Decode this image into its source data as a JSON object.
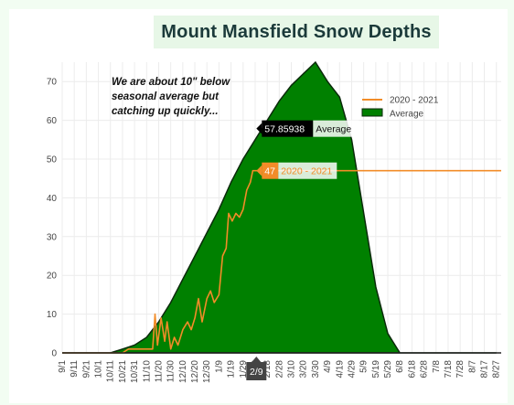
{
  "title": "Mount Mansfield Snow Depths",
  "annotation": "We are about 10\" below seasonal average but catching up quickly...",
  "colors": {
    "average_fill": "#008000",
    "average_line": "#0a2a0a",
    "season_line": "#f28c28",
    "title_bg": "#e7f7e7",
    "frame_bg": "#f2fdf2",
    "grid": "#ececec"
  },
  "tooltips": {
    "average": {
      "value": "57.85938",
      "label": "Average"
    },
    "season": {
      "value": "47",
      "label": "2020 - 2021"
    },
    "x_hover": "2/9"
  },
  "chart_data": {
    "type": "area",
    "title": "Mount Mansfield Snow Depths",
    "xlabel": "",
    "ylabel": "",
    "ylim": [
      0,
      75
    ],
    "yticks": [
      0,
      10,
      20,
      30,
      40,
      50,
      60,
      70
    ],
    "grid": true,
    "legend_position": "top-right",
    "x_ticks": [
      "9/1",
      "9/11",
      "9/21",
      "10/1",
      "10/11",
      "10/21",
      "10/31",
      "11/10",
      "11/20",
      "11/30",
      "12/10",
      "12/20",
      "12/30",
      "1/9",
      "1/19",
      "1/29",
      "2/8",
      "2/18",
      "2/28",
      "3/10",
      "3/20",
      "3/30",
      "4/9",
      "4/19",
      "4/29",
      "5/9",
      "5/19",
      "5/29",
      "6/8",
      "6/18",
      "6/28",
      "7/8",
      "7/18",
      "7/28",
      "8/7",
      "8/17",
      "8/27"
    ],
    "series": [
      {
        "name": "Average",
        "type": "area",
        "points": [
          [
            "9/1",
            0
          ],
          [
            "10/11",
            0
          ],
          [
            "10/21",
            1
          ],
          [
            "10/31",
            2
          ],
          [
            "11/10",
            4
          ],
          [
            "11/20",
            8
          ],
          [
            "11/30",
            13
          ],
          [
            "12/10",
            19
          ],
          [
            "12/20",
            25
          ],
          [
            "12/30",
            31
          ],
          [
            "1/9",
            37
          ],
          [
            "1/19",
            44
          ],
          [
            "1/29",
            50
          ],
          [
            "2/8",
            55
          ],
          [
            "2/18",
            60
          ],
          [
            "2/28",
            65
          ],
          [
            "3/10",
            69
          ],
          [
            "3/20",
            72
          ],
          [
            "3/30",
            75
          ],
          [
            "4/9",
            70
          ],
          [
            "4/19",
            66
          ],
          [
            "4/29",
            55
          ],
          [
            "5/9",
            36
          ],
          [
            "5/19",
            17
          ],
          [
            "5/29",
            5
          ],
          [
            "6/8",
            0
          ],
          [
            "8/27",
            0
          ]
        ]
      },
      {
        "name": "2020 - 2021",
        "type": "line",
        "points": [
          [
            "9/1",
            0
          ],
          [
            "10/21",
            0
          ],
          [
            "10/26",
            1
          ],
          [
            "11/15",
            1
          ],
          [
            "11/17",
            10
          ],
          [
            "11/19",
            2
          ],
          [
            "11/22",
            9
          ],
          [
            "11/25",
            3
          ],
          [
            "11/27",
            8
          ],
          [
            "11/30",
            1
          ],
          [
            "12/3",
            4
          ],
          [
            "12/6",
            2
          ],
          [
            "12/10",
            6
          ],
          [
            "12/14",
            8
          ],
          [
            "12/17",
            6
          ],
          [
            "12/20",
            9
          ],
          [
            "12/23",
            14
          ],
          [
            "12/26",
            8
          ],
          [
            "12/30",
            14
          ],
          [
            "1/2",
            16
          ],
          [
            "1/5",
            13
          ],
          [
            "1/9",
            15
          ],
          [
            "1/12",
            25
          ],
          [
            "1/15",
            27
          ],
          [
            "1/17",
            36
          ],
          [
            "1/20",
            34
          ],
          [
            "1/23",
            36
          ],
          [
            "1/26",
            35
          ],
          [
            "1/29",
            37
          ],
          [
            "2/1",
            42
          ],
          [
            "2/4",
            44
          ],
          [
            "2/6",
            47
          ],
          [
            "2/9",
            47
          ],
          [
            "8/31",
            47
          ]
        ]
      }
    ]
  }
}
